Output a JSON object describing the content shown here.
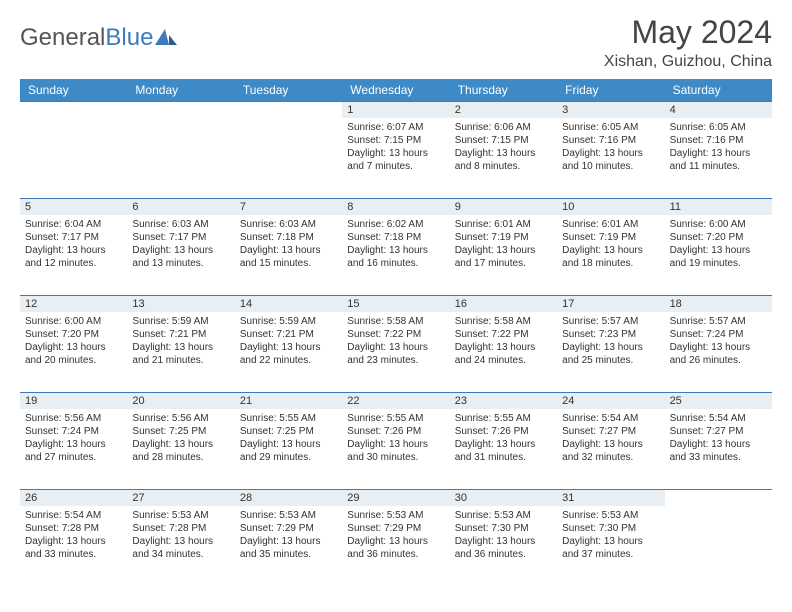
{
  "logo": {
    "text_gray": "General",
    "text_blue": "Blue"
  },
  "header": {
    "month_title": "May 2024",
    "location": "Xishan, Guizhou, China"
  },
  "colors": {
    "header_bg": "#3d8ac7",
    "header_text": "#ffffff",
    "daynum_bg": "#e9eef2",
    "rule": "#3d7ab8",
    "body_text": "#333333"
  },
  "days_of_week": [
    "Sunday",
    "Monday",
    "Tuesday",
    "Wednesday",
    "Thursday",
    "Friday",
    "Saturday"
  ],
  "weeks": [
    [
      {
        "n": "",
        "sunrise": "",
        "sunset": "",
        "daylight": ""
      },
      {
        "n": "",
        "sunrise": "",
        "sunset": "",
        "daylight": ""
      },
      {
        "n": "",
        "sunrise": "",
        "sunset": "",
        "daylight": ""
      },
      {
        "n": "1",
        "sunrise": "Sunrise: 6:07 AM",
        "sunset": "Sunset: 7:15 PM",
        "daylight": "Daylight: 13 hours and 7 minutes."
      },
      {
        "n": "2",
        "sunrise": "Sunrise: 6:06 AM",
        "sunset": "Sunset: 7:15 PM",
        "daylight": "Daylight: 13 hours and 8 minutes."
      },
      {
        "n": "3",
        "sunrise": "Sunrise: 6:05 AM",
        "sunset": "Sunset: 7:16 PM",
        "daylight": "Daylight: 13 hours and 10 minutes."
      },
      {
        "n": "4",
        "sunrise": "Sunrise: 6:05 AM",
        "sunset": "Sunset: 7:16 PM",
        "daylight": "Daylight: 13 hours and 11 minutes."
      }
    ],
    [
      {
        "n": "5",
        "sunrise": "Sunrise: 6:04 AM",
        "sunset": "Sunset: 7:17 PM",
        "daylight": "Daylight: 13 hours and 12 minutes."
      },
      {
        "n": "6",
        "sunrise": "Sunrise: 6:03 AM",
        "sunset": "Sunset: 7:17 PM",
        "daylight": "Daylight: 13 hours and 13 minutes."
      },
      {
        "n": "7",
        "sunrise": "Sunrise: 6:03 AM",
        "sunset": "Sunset: 7:18 PM",
        "daylight": "Daylight: 13 hours and 15 minutes."
      },
      {
        "n": "8",
        "sunrise": "Sunrise: 6:02 AM",
        "sunset": "Sunset: 7:18 PM",
        "daylight": "Daylight: 13 hours and 16 minutes."
      },
      {
        "n": "9",
        "sunrise": "Sunrise: 6:01 AM",
        "sunset": "Sunset: 7:19 PM",
        "daylight": "Daylight: 13 hours and 17 minutes."
      },
      {
        "n": "10",
        "sunrise": "Sunrise: 6:01 AM",
        "sunset": "Sunset: 7:19 PM",
        "daylight": "Daylight: 13 hours and 18 minutes."
      },
      {
        "n": "11",
        "sunrise": "Sunrise: 6:00 AM",
        "sunset": "Sunset: 7:20 PM",
        "daylight": "Daylight: 13 hours and 19 minutes."
      }
    ],
    [
      {
        "n": "12",
        "sunrise": "Sunrise: 6:00 AM",
        "sunset": "Sunset: 7:20 PM",
        "daylight": "Daylight: 13 hours and 20 minutes."
      },
      {
        "n": "13",
        "sunrise": "Sunrise: 5:59 AM",
        "sunset": "Sunset: 7:21 PM",
        "daylight": "Daylight: 13 hours and 21 minutes."
      },
      {
        "n": "14",
        "sunrise": "Sunrise: 5:59 AM",
        "sunset": "Sunset: 7:21 PM",
        "daylight": "Daylight: 13 hours and 22 minutes."
      },
      {
        "n": "15",
        "sunrise": "Sunrise: 5:58 AM",
        "sunset": "Sunset: 7:22 PM",
        "daylight": "Daylight: 13 hours and 23 minutes."
      },
      {
        "n": "16",
        "sunrise": "Sunrise: 5:58 AM",
        "sunset": "Sunset: 7:22 PM",
        "daylight": "Daylight: 13 hours and 24 minutes."
      },
      {
        "n": "17",
        "sunrise": "Sunrise: 5:57 AM",
        "sunset": "Sunset: 7:23 PM",
        "daylight": "Daylight: 13 hours and 25 minutes."
      },
      {
        "n": "18",
        "sunrise": "Sunrise: 5:57 AM",
        "sunset": "Sunset: 7:24 PM",
        "daylight": "Daylight: 13 hours and 26 minutes."
      }
    ],
    [
      {
        "n": "19",
        "sunrise": "Sunrise: 5:56 AM",
        "sunset": "Sunset: 7:24 PM",
        "daylight": "Daylight: 13 hours and 27 minutes."
      },
      {
        "n": "20",
        "sunrise": "Sunrise: 5:56 AM",
        "sunset": "Sunset: 7:25 PM",
        "daylight": "Daylight: 13 hours and 28 minutes."
      },
      {
        "n": "21",
        "sunrise": "Sunrise: 5:55 AM",
        "sunset": "Sunset: 7:25 PM",
        "daylight": "Daylight: 13 hours and 29 minutes."
      },
      {
        "n": "22",
        "sunrise": "Sunrise: 5:55 AM",
        "sunset": "Sunset: 7:26 PM",
        "daylight": "Daylight: 13 hours and 30 minutes."
      },
      {
        "n": "23",
        "sunrise": "Sunrise: 5:55 AM",
        "sunset": "Sunset: 7:26 PM",
        "daylight": "Daylight: 13 hours and 31 minutes."
      },
      {
        "n": "24",
        "sunrise": "Sunrise: 5:54 AM",
        "sunset": "Sunset: 7:27 PM",
        "daylight": "Daylight: 13 hours and 32 minutes."
      },
      {
        "n": "25",
        "sunrise": "Sunrise: 5:54 AM",
        "sunset": "Sunset: 7:27 PM",
        "daylight": "Daylight: 13 hours and 33 minutes."
      }
    ],
    [
      {
        "n": "26",
        "sunrise": "Sunrise: 5:54 AM",
        "sunset": "Sunset: 7:28 PM",
        "daylight": "Daylight: 13 hours and 33 minutes."
      },
      {
        "n": "27",
        "sunrise": "Sunrise: 5:53 AM",
        "sunset": "Sunset: 7:28 PM",
        "daylight": "Daylight: 13 hours and 34 minutes."
      },
      {
        "n": "28",
        "sunrise": "Sunrise: 5:53 AM",
        "sunset": "Sunset: 7:29 PM",
        "daylight": "Daylight: 13 hours and 35 minutes."
      },
      {
        "n": "29",
        "sunrise": "Sunrise: 5:53 AM",
        "sunset": "Sunset: 7:29 PM",
        "daylight": "Daylight: 13 hours and 36 minutes."
      },
      {
        "n": "30",
        "sunrise": "Sunrise: 5:53 AM",
        "sunset": "Sunset: 7:30 PM",
        "daylight": "Daylight: 13 hours and 36 minutes."
      },
      {
        "n": "31",
        "sunrise": "Sunrise: 5:53 AM",
        "sunset": "Sunset: 7:30 PM",
        "daylight": "Daylight: 13 hours and 37 minutes."
      },
      {
        "n": "",
        "sunrise": "",
        "sunset": "",
        "daylight": ""
      }
    ]
  ]
}
